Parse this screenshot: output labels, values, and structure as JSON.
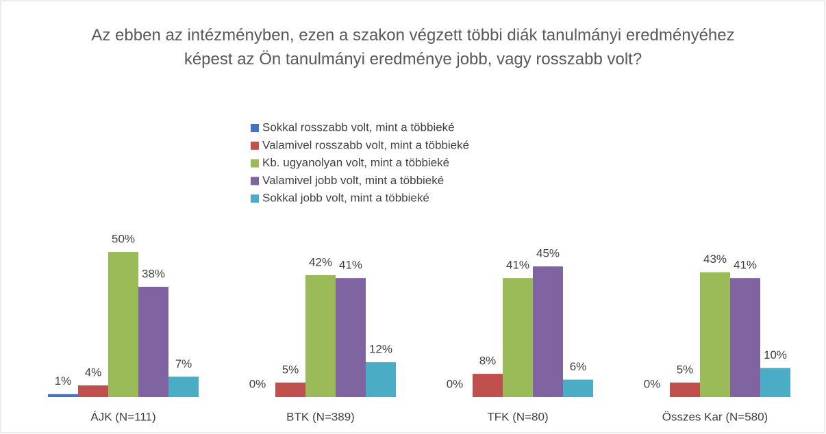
{
  "chart_data": {
    "type": "bar",
    "title": "Az ebben az intézményben, ezen a szakon végzett többi diák tanulmányi eredményéhez képest az Ön tanulmányi eredménye jobb, vagy rosszabb volt?",
    "categories": [
      "ÁJK (N=111)",
      "BTK (N=389)",
      "TFK (N=80)",
      "Összes Kar (N=580)"
    ],
    "series": [
      {
        "name": "Sokkal rosszabb volt, mint a többieké",
        "color": "#4472c4",
        "values": [
          1,
          0,
          0,
          0
        ],
        "value_labels": [
          "1%",
          "0%",
          "0%",
          "0%"
        ]
      },
      {
        "name": "Valamivel rosszabb volt, mint a többieké",
        "color": "#c0504d",
        "values": [
          4,
          5,
          8,
          5
        ],
        "value_labels": [
          "4%",
          "5%",
          "8%",
          "5%"
        ]
      },
      {
        "name": "Kb. ugyanolyan volt, mint a többieké",
        "color": "#9bbb59",
        "values": [
          50,
          42,
          41,
          43
        ],
        "value_labels": [
          "50%",
          "42%",
          "41%",
          "43%"
        ]
      },
      {
        "name": "Valamivel jobb volt, mint a többieké",
        "color": "#8064a2",
        "values": [
          38,
          41,
          45,
          41
        ],
        "value_labels": [
          "38%",
          "41%",
          "45%",
          "41%"
        ]
      },
      {
        "name": "Sokkal jobb volt, mint a többieké",
        "color": "#4bacc6",
        "values": [
          7,
          12,
          6,
          10
        ],
        "value_labels": [
          "7%",
          "12%",
          "6%",
          "10%"
        ]
      }
    ]
  }
}
